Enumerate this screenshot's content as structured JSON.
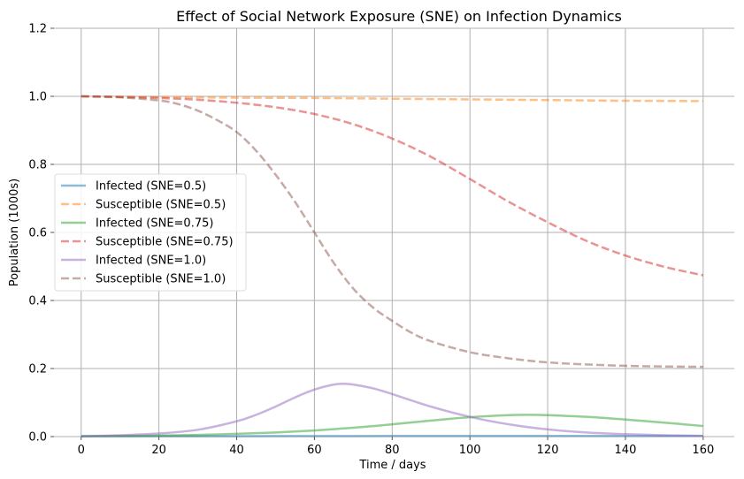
{
  "chart_data": {
    "type": "line",
    "title": "Effect of Social Network Exposure (SNE) on Infection Dynamics",
    "xlabel": "Time / days",
    "ylabel": "Population (1000s)",
    "xlim": [
      -7,
      168
    ],
    "ylim": [
      0,
      1.2
    ],
    "xticks": [
      0,
      20,
      40,
      60,
      80,
      100,
      120,
      140,
      160
    ],
    "yticks": [
      0.0,
      0.2,
      0.4,
      0.6,
      0.8,
      1.0,
      1.2
    ],
    "grid": true,
    "legend_position": "center-left",
    "series": [
      {
        "name": "Infected (SNE=0.5)",
        "color": "#1f77b4",
        "dash": "solid",
        "x": [
          0,
          20,
          40,
          60,
          80,
          100,
          120,
          140,
          160
        ],
        "y": [
          0.001,
          0.0012,
          0.0014,
          0.0016,
          0.0018,
          0.0019,
          0.002,
          0.002,
          0.002
        ]
      },
      {
        "name": "Susceptible (SNE=0.5)",
        "color": "#ff7f0e",
        "dash": "dashed",
        "x": [
          0,
          20,
          40,
          60,
          80,
          100,
          120,
          140,
          160
        ],
        "y": [
          1.0,
          0.998,
          0.996,
          0.995,
          0.993,
          0.991,
          0.989,
          0.987,
          0.986
        ]
      },
      {
        "name": "Infected (SNE=0.75)",
        "color": "#2ca02c",
        "dash": "solid",
        "x": [
          0,
          10,
          20,
          30,
          40,
          50,
          60,
          70,
          80,
          90,
          100,
          110,
          115,
          120,
          130,
          140,
          150,
          160
        ],
        "y": [
          0.001,
          0.002,
          0.003,
          0.005,
          0.008,
          0.012,
          0.018,
          0.026,
          0.036,
          0.047,
          0.057,
          0.063,
          0.064,
          0.063,
          0.058,
          0.05,
          0.041,
          0.031
        ]
      },
      {
        "name": "Susceptible (SNE=0.75)",
        "color": "#d62728",
        "dash": "dashed",
        "x": [
          0,
          10,
          20,
          30,
          40,
          50,
          60,
          70,
          80,
          90,
          100,
          110,
          120,
          130,
          140,
          150,
          160
        ],
        "y": [
          1.0,
          0.998,
          0.995,
          0.99,
          0.981,
          0.968,
          0.948,
          0.918,
          0.876,
          0.822,
          0.757,
          0.69,
          0.63,
          0.575,
          0.532,
          0.499,
          0.474
        ]
      },
      {
        "name": "Infected (SNE=1.0)",
        "color": "#9467bd",
        "dash": "solid",
        "x": [
          0,
          10,
          20,
          30,
          40,
          45,
          50,
          55,
          60,
          65,
          68,
          70,
          75,
          80,
          90,
          100,
          110,
          120,
          130,
          140,
          150,
          160
        ],
        "y": [
          0.001,
          0.004,
          0.009,
          0.02,
          0.045,
          0.064,
          0.088,
          0.115,
          0.138,
          0.153,
          0.155,
          0.153,
          0.142,
          0.125,
          0.088,
          0.058,
          0.036,
          0.021,
          0.012,
          0.007,
          0.004,
          0.002
        ]
      },
      {
        "name": "Susceptible (SNE=1.0)",
        "color": "#8c564b",
        "dash": "dashed",
        "x": [
          0,
          10,
          20,
          25,
          30,
          35,
          40,
          45,
          50,
          55,
          60,
          65,
          70,
          75,
          80,
          85,
          90,
          100,
          110,
          120,
          130,
          140,
          150,
          160
        ],
        "y": [
          1.0,
          0.997,
          0.988,
          0.977,
          0.958,
          0.93,
          0.895,
          0.84,
          0.77,
          0.69,
          0.6,
          0.51,
          0.435,
          0.38,
          0.34,
          0.305,
          0.28,
          0.248,
          0.23,
          0.218,
          0.212,
          0.208,
          0.206,
          0.205
        ]
      }
    ]
  }
}
